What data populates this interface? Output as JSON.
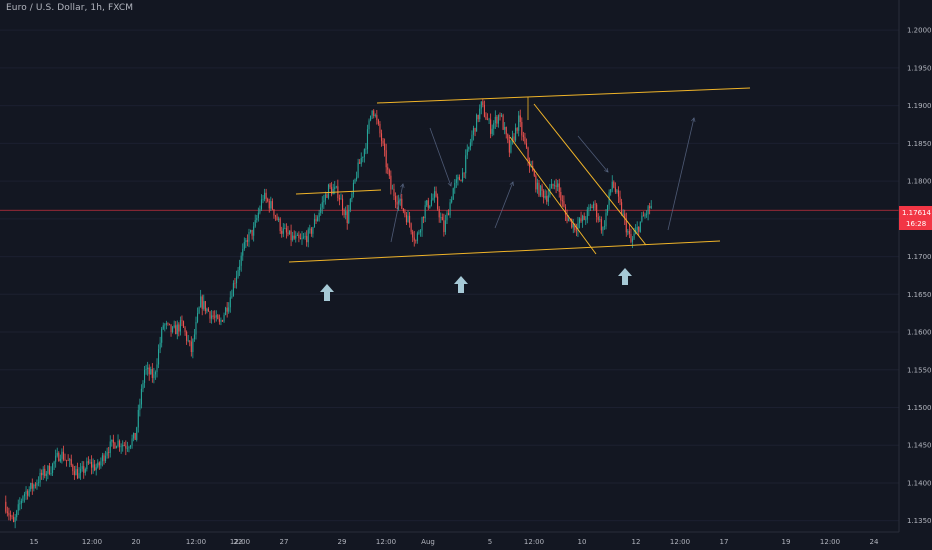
{
  "header": {
    "symbol_title": "Euro / U.S. Dollar, 1h, FXCM"
  },
  "colors": {
    "background": "#131722",
    "up_candle": "#26a69a",
    "down_candle": "#ef5350",
    "trendline": "#f0b429",
    "arrow": "#a6c9d6",
    "price_line": "#f23645"
  },
  "price_badge": {
    "price": "1.17614",
    "countdown": "16:28"
  },
  "chart_data": {
    "type": "candlestick",
    "title": "",
    "ylim": [
      1.1335,
      1.204
    ],
    "y_ticks": [
      "1.20000",
      "1.19500",
      "1.19000",
      "1.18500",
      "1.18000",
      "1.17500",
      "1.17000",
      "1.16500",
      "1.16000",
      "1.15500",
      "1.15000",
      "1.14500",
      "1.14000",
      "1.13500"
    ],
    "x_ticks": [
      "15",
      "12:00",
      "20",
      "12:00",
      "22",
      "12:00",
      "27",
      "29",
      "12:00",
      "Aug",
      "5",
      "12:00",
      "10",
      "12",
      "12:00",
      "17",
      "19",
      "12:00",
      "24"
    ],
    "current_price": 1.17614,
    "waypoints": [
      [
        0,
        1.1375
      ],
      [
        6,
        1.1345
      ],
      [
        12,
        1.1385
      ],
      [
        18,
        1.1395
      ],
      [
        24,
        1.141
      ],
      [
        30,
        1.142
      ],
      [
        36,
        1.144
      ],
      [
        42,
        1.1425
      ],
      [
        48,
        1.141
      ],
      [
        54,
        1.1425
      ],
      [
        60,
        1.142
      ],
      [
        66,
        1.1445
      ],
      [
        72,
        1.1455
      ],
      [
        78,
        1.145
      ],
      [
        84,
        1.146
      ],
      [
        90,
        1.155
      ],
      [
        96,
        1.154
      ],
      [
        102,
        1.161
      ],
      [
        108,
        1.16
      ],
      [
        114,
        1.161
      ],
      [
        120,
        1.1575
      ],
      [
        126,
        1.164
      ],
      [
        132,
        1.1625
      ],
      [
        138,
        1.161
      ],
      [
        144,
        1.164
      ],
      [
        150,
        1.1685
      ],
      [
        156,
        1.1725
      ],
      [
        160,
        1.1735
      ],
      [
        166,
        1.178
      ],
      [
        172,
        1.1765
      ],
      [
        178,
        1.1735
      ],
      [
        184,
        1.1725
      ],
      [
        190,
        1.172
      ],
      [
        196,
        1.173
      ],
      [
        202,
        1.176
      ],
      [
        208,
        1.179
      ],
      [
        214,
        1.1785
      ],
      [
        220,
        1.175
      ],
      [
        226,
        1.181
      ],
      [
        232,
        1.185
      ],
      [
        236,
        1.19
      ],
      [
        242,
        1.1855
      ],
      [
        248,
        1.179
      ],
      [
        254,
        1.177
      ],
      [
        260,
        1.1745
      ],
      [
        264,
        1.172
      ],
      [
        270,
        1.1765
      ],
      [
        276,
        1.178
      ],
      [
        282,
        1.1735
      ],
      [
        288,
        1.179
      ],
      [
        294,
        1.181
      ],
      [
        300,
        1.186
      ],
      [
        306,
        1.19
      ],
      [
        312,
        1.187
      ],
      [
        318,
        1.189
      ],
      [
        324,
        1.184
      ],
      [
        330,
        1.188
      ],
      [
        336,
        1.183
      ],
      [
        342,
        1.179
      ],
      [
        348,
        1.178
      ],
      [
        354,
        1.18
      ],
      [
        360,
        1.1755
      ],
      [
        366,
        1.174
      ],
      [
        372,
        1.175
      ],
      [
        378,
        1.177
      ],
      [
        384,
        1.1735
      ],
      [
        390,
        1.18
      ],
      [
        396,
        1.176
      ],
      [
        402,
        1.1718
      ],
      [
        408,
        1.1745
      ],
      [
        414,
        1.1765
      ]
    ]
  }
}
